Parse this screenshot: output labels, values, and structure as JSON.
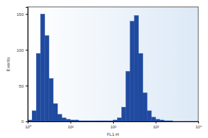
{
  "chart_data": {
    "type": "histogram",
    "log": "x",
    "x_label": "FL1-H",
    "y_label": "Events",
    "bins": [
      1,
      1.259,
      1.585,
      1.995,
      2.512,
      3.162,
      3.981,
      5.012,
      6.31,
      7.943,
      10,
      12.59,
      15.85,
      19.95,
      25.12,
      31.62,
      39.81,
      50.12,
      63.1,
      79.43,
      100,
      125.9,
      158.5,
      199.5,
      251.2,
      316.2,
      398.1,
      501.2,
      631,
      794.3,
      1000,
      1259,
      1585,
      1995,
      2512,
      3162,
      3981,
      5012,
      6310,
      7943,
      10000
    ],
    "counts": [
      2,
      15,
      95,
      150,
      120,
      60,
      25,
      10,
      5,
      3,
      2,
      2,
      1,
      1,
      1,
      1,
      1,
      1,
      1,
      1,
      2,
      5,
      20,
      70,
      140,
      148,
      95,
      40,
      15,
      6,
      3,
      2,
      1,
      1,
      0,
      0,
      0,
      0,
      0,
      0
    ],
    "color": "#1f4aa0",
    "xlim": [
      1,
      10000
    ],
    "xticks": [
      {
        "value": 1,
        "label": "10⁰"
      },
      {
        "value": 10,
        "label": "10¹"
      },
      {
        "value": 100,
        "label": "10²"
      },
      {
        "value": 1000,
        "label": "10³"
      },
      {
        "value": 10000,
        "label": "10⁴"
      }
    ],
    "ylim": [
      0,
      160
    ],
    "yticks": [
      0,
      50,
      100,
      150
    ]
  }
}
